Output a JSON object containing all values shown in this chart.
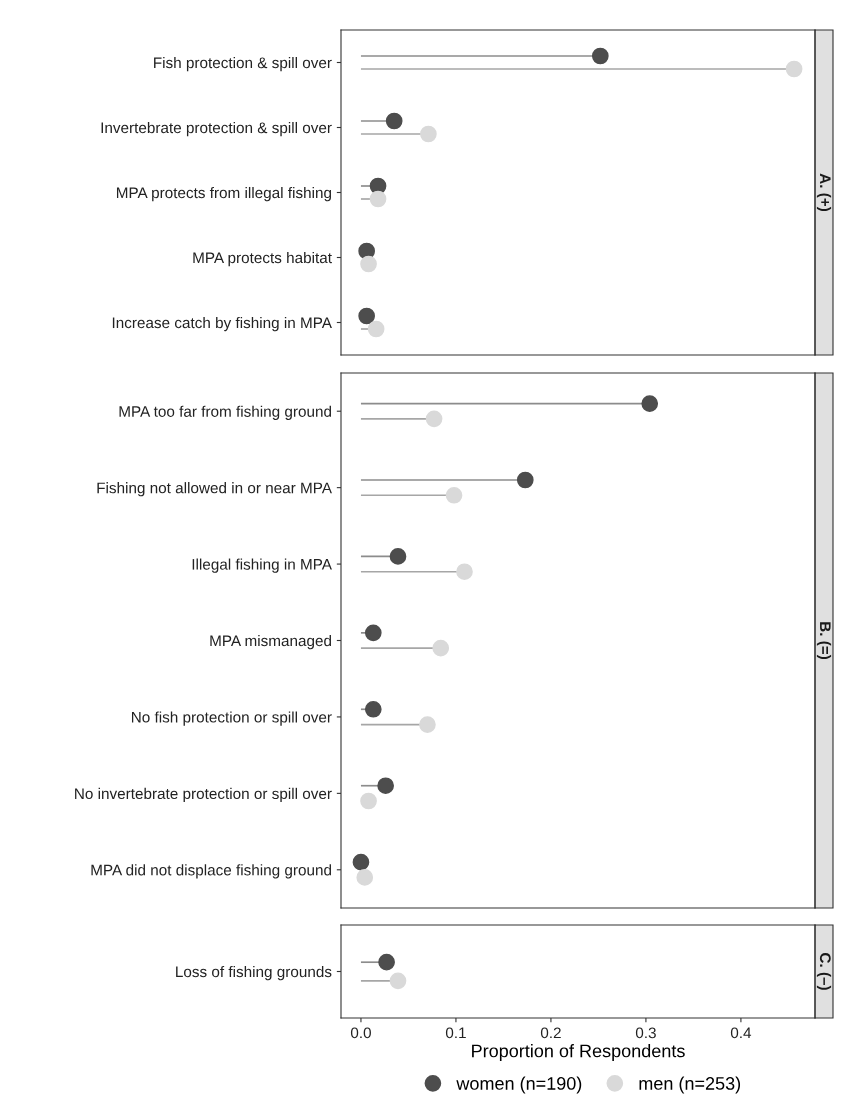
{
  "chart_data": [
    {
      "type": "lollipop",
      "title": "A. (+)",
      "orientation": "horizontal",
      "categories": [
        "Fish protection & spill over",
        "Invertebrate protection & spill over",
        "MPA protects from illegal fishing",
        "MPA protects habitat",
        "Increase catch by fishing in MPA"
      ],
      "series": [
        {
          "name": "women (n=190)",
          "color": "#4d4d4d",
          "values": [
            0.252,
            0.035,
            0.018,
            0.006,
            0.006
          ]
        },
        {
          "name": "men (n=253)",
          "color": "#d9d9d9",
          "values": [
            0.456,
            0.071,
            0.018,
            0.008,
            0.016
          ]
        }
      ],
      "xlim": [
        -0.021,
        0.478
      ],
      "tick_labels": "y",
      "marker": "circle",
      "legend": "bottom"
    },
    {
      "type": "lollipop",
      "title": "B. (=)",
      "orientation": "horizontal",
      "categories": [
        "MPA too far from fishing ground",
        "Fishing not allowed in or near MPA",
        "Illegal fishing in MPA",
        "MPA mismanaged",
        "No fish protection or spill over",
        "No invertebrate protection or spill over",
        "MPA did not displace fishing ground"
      ],
      "series": [
        {
          "color": "#4d4d4d",
          "values": [
            0.304,
            0.173,
            0.039,
            0.013,
            0.013,
            0.026,
            0.0
          ]
        },
        {
          "color": "#d9d9d9",
          "values": [
            0.077,
            0.098,
            0.109,
            0.084,
            0.07,
            0.008,
            0.004
          ]
        }
      ],
      "xlim": [
        -0.021,
        0.478
      ],
      "tick_labels": "y",
      "marker": "circle"
    },
    {
      "type": "lollipop",
      "title": "C. (–)",
      "orientation": "horizontal",
      "categories": [
        "Loss of fishing grounds"
      ],
      "series": [
        {
          "color": "#4d4d4d",
          "values": [
            0.027
          ]
        },
        {
          "color": "#d9d9d9",
          "values": [
            0.039
          ]
        }
      ],
      "xlim": [
        -0.021,
        0.478
      ],
      "xticks": [
        {
          "value": 0,
          "label": "0.0"
        },
        0.1,
        0.2,
        0.3,
        0.4
      ],
      "xlabel": "Proportion of Respondents",
      "marker": "circle"
    }
  ]
}
